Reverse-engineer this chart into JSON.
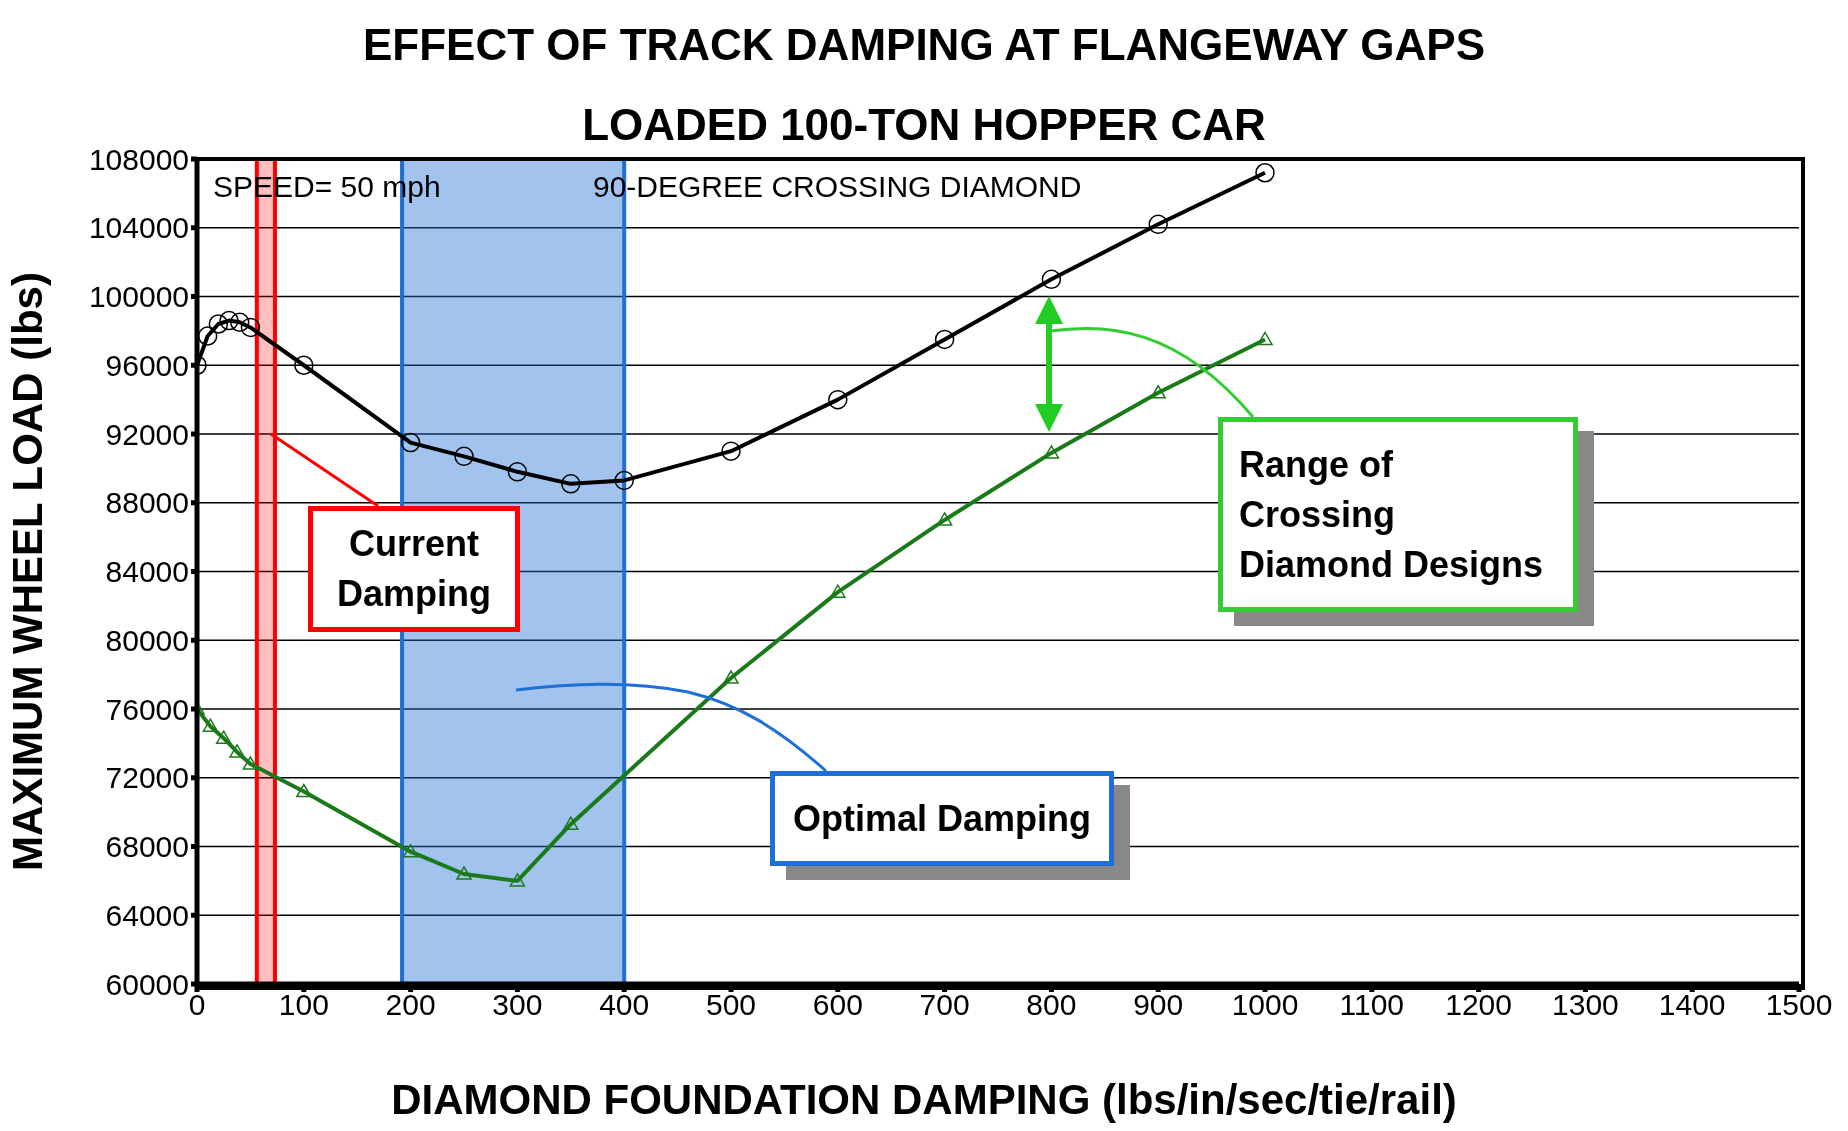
{
  "chart_data": {
    "type": "line",
    "title": "EFFECT OF TRACK DAMPING AT FLANGEWAY GAPS",
    "subtitle": "LOADED 100-TON HOPPER CAR",
    "xlabel": "DIAMOND FOUNDATION DAMPING (lbs/in/sec/tie/rail)",
    "ylabel": "MAXIMUM WHEEL LOAD (lbs)",
    "xlim": [
      0,
      1500
    ],
    "xticks": [
      0,
      100,
      200,
      300,
      400,
      500,
      600,
      700,
      800,
      900,
      1000,
      1100,
      1200,
      1300,
      1400,
      1500
    ],
    "ylim": [
      60000,
      108000
    ],
    "yticks": [
      60000,
      64000,
      68000,
      72000,
      76000,
      80000,
      84000,
      88000,
      92000,
      96000,
      100000,
      104000,
      108000
    ],
    "grid": "y",
    "line_style": "solid",
    "series": [
      {
        "color": "#000000",
        "marker": "circle",
        "x": [
          0,
          10,
          20,
          30,
          40,
          50,
          100,
          200,
          250,
          300,
          350,
          400,
          500,
          600,
          700,
          800,
          900,
          1000
        ],
        "values": [
          96000,
          97700,
          98400,
          98600,
          98500,
          98200,
          96000,
          91500,
          90700,
          89800,
          89100,
          89300,
          91000,
          94000,
          97500,
          101000,
          104200,
          107200
        ]
      },
      {
        "color": "#1a7a1a",
        "marker": "triangle",
        "x": [
          0,
          12.5,
          25,
          37.5,
          50,
          100,
          200,
          250,
          300,
          350,
          500,
          600,
          700,
          800,
          900,
          1000
        ],
        "values": [
          76000,
          75000,
          74300,
          73500,
          72800,
          71200,
          67700,
          66400,
          66000,
          69300,
          77800,
          82800,
          87000,
          90900,
          94400,
          97500
        ]
      }
    ],
    "bands": [
      {
        "axis": "x",
        "from": 192,
        "to": 400,
        "color": "#1f6fd6",
        "label": "Optimal Damping"
      },
      {
        "axis": "x",
        "from": 56,
        "to": 73,
        "color": "#ff0000",
        "label": "Current Damping"
      }
    ],
    "annotations": [
      "SPEED= 50 mph",
      "90-DEGREE CROSSING DIAMOND",
      "Range of Crossing Diamond Designs"
    ]
  }
}
